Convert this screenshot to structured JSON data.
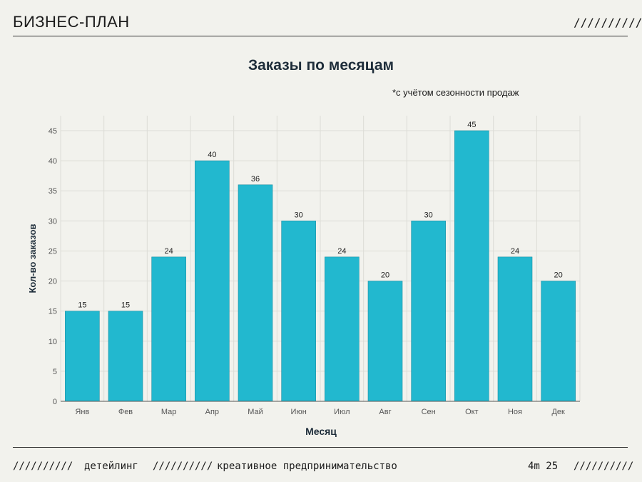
{
  "header": {
    "title": "БИЗНЕС-ПЛАН",
    "slashes": "//////////"
  },
  "chart_note": "*с учётом сезонности продаж",
  "chart_data": {
    "type": "bar",
    "title": "Заказы по месяцам",
    "xlabel": "Месяц",
    "ylabel": "Кол-во заказов",
    "categories": [
      "Янв",
      "Фев",
      "Мар",
      "Апр",
      "Май",
      "Июн",
      "Июл",
      "Авг",
      "Сен",
      "Окт",
      "Ноя",
      "Дек"
    ],
    "values": [
      15,
      15,
      24,
      40,
      36,
      30,
      24,
      20,
      30,
      45,
      24,
      20
    ],
    "ylim": [
      0,
      45
    ],
    "yticks": [
      0,
      5,
      10,
      15,
      20,
      25,
      30,
      35,
      40,
      45
    ],
    "bar_color": "#22b8cf",
    "grid": true
  },
  "footer": {
    "slashes_left": "//////////",
    "tag1": "детейлинг",
    "slashes_mid": "//////////",
    "tag2": "креативное предпринимательство",
    "page": "4m 25",
    "slashes_right": "//////////"
  }
}
